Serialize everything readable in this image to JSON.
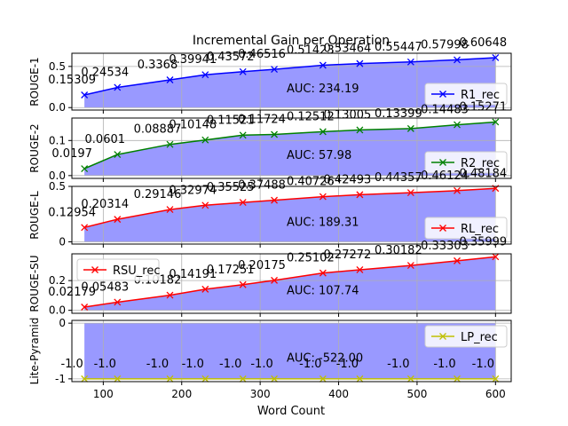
{
  "chart_data": {
    "type": "line",
    "title": "Incremental Gain per Operation",
    "xlabel": "Word Count",
    "x": [
      76,
      118,
      185,
      230,
      278,
      318,
      380,
      427,
      492,
      551,
      600
    ],
    "xlim": [
      60,
      620
    ],
    "xticks": [
      100,
      200,
      300,
      400,
      500,
      600
    ],
    "grid": true,
    "fill_color": "#9999ff",
    "panels": [
      {
        "ylabel": "ROUGE-1",
        "series": {
          "name": "R1_rec",
          "color": "#0000ff",
          "marker": "x",
          "values": [
            0.15309,
            0.24534,
            0.3368,
            0.39941,
            0.43572,
            0.46516,
            0.51423,
            0.53464,
            0.55447,
            0.57998,
            0.60648
          ],
          "labels": [
            "0.15309",
            "0.24534",
            "0.3368",
            "0.39941",
            "0.43572",
            "0.46516",
            "0.51423",
            "0.53464",
            "0.55447",
            "0.57998",
            "0.60648"
          ]
        },
        "auc": "AUC: 234.19",
        "ylim": [
          -0.03,
          0.66
        ],
        "yticks": [
          0.0,
          0.5
        ],
        "yticklabels": [
          "0.0",
          "0.5"
        ],
        "legend_position": "lower-right"
      },
      {
        "ylabel": "ROUGE-2",
        "series": {
          "name": "R2_rec",
          "color": "#008000",
          "marker": "x",
          "values": [
            0.0197,
            0.0601,
            0.08887,
            0.10148,
            0.11521,
            0.11724,
            0.12512,
            0.13005,
            0.13399,
            0.14483,
            0.15271
          ],
          "labels": [
            "0.0197",
            "0.0601",
            "0.08887",
            "0.10148",
            "0.11521",
            "0.11724",
            "0.12512",
            "0.13005",
            "0.13399",
            "0.14483",
            "0.15271"
          ]
        },
        "auc": "AUC: 57.98",
        "ylim": [
          -0.008,
          0.164
        ],
        "yticks": [
          0.0,
          0.1
        ],
        "yticklabels": [
          "0.0",
          "0.1"
        ],
        "legend_position": "lower-right"
      },
      {
        "ylabel": "ROUGE-L",
        "series": {
          "name": "RL_rec",
          "color": "#ff0000",
          "marker": "x",
          "values": [
            0.12954,
            0.20314,
            0.29146,
            0.32974,
            0.35525,
            0.37488,
            0.40726,
            0.42493,
            0.44357,
            0.46124,
            0.48184
          ],
          "labels": [
            "0.12954",
            "0.20314",
            "0.29146",
            "0.32974",
            "0.35525",
            "0.37488",
            "0.40726",
            "0.42493",
            "0.44357",
            "0.46124",
            "0.48184"
          ]
        },
        "auc": "AUC: 189.31",
        "ylim": [
          -0.02,
          0.5
        ],
        "yticks": [
          0.0,
          0.5
        ],
        "yticklabels": [
          "0",
          "0.5"
        ],
        "legend_position": "lower-right"
      },
      {
        "ylabel": "ROUGE-SU",
        "series": {
          "name": "RSU_rec",
          "color": "#ff0000",
          "marker": "x",
          "values": [
            0.02179,
            0.05483,
            0.10182,
            0.14191,
            0.17251,
            0.20175,
            0.25102,
            0.27272,
            0.30182,
            0.33303,
            0.35999
          ],
          "labels": [
            "0.02179",
            "0.05483",
            "0.10182",
            "0.14191",
            "0.17251",
            "0.20175",
            "0.25102",
            "0.27272",
            "0.30182",
            "0.33303",
            "0.35999"
          ]
        },
        "auc": "AUC: 107.74",
        "ylim": [
          -0.02,
          0.38
        ],
        "yticks": [
          0.0,
          0.2
        ],
        "yticklabels": [
          "0.0",
          "0.2"
        ],
        "legend_position": "upper-left"
      },
      {
        "ylabel": "Lite-Pyramid",
        "series": {
          "name": "LP_rec",
          "color": "#bfbf00",
          "marker": "x",
          "values": [
            -1.0,
            -1.0,
            -1.0,
            -1.0,
            -1.0,
            -1.0,
            -1.0,
            -1.0,
            -1.0,
            -1.0,
            -1.0
          ],
          "labels": [
            "-1.0",
            "-1.0",
            "-1.0",
            "-1.0",
            "-1.0",
            "-1.0",
            "-1.0",
            "-1.0",
            "-1.0",
            "-1.0",
            "-1.0"
          ]
        },
        "auc": "AUC: -522.00",
        "ylim": [
          -1.05,
          0.05
        ],
        "yticks": [
          -1,
          0
        ],
        "yticklabels": [
          "-1",
          "0"
        ],
        "legend_position": "upper-right"
      }
    ]
  }
}
